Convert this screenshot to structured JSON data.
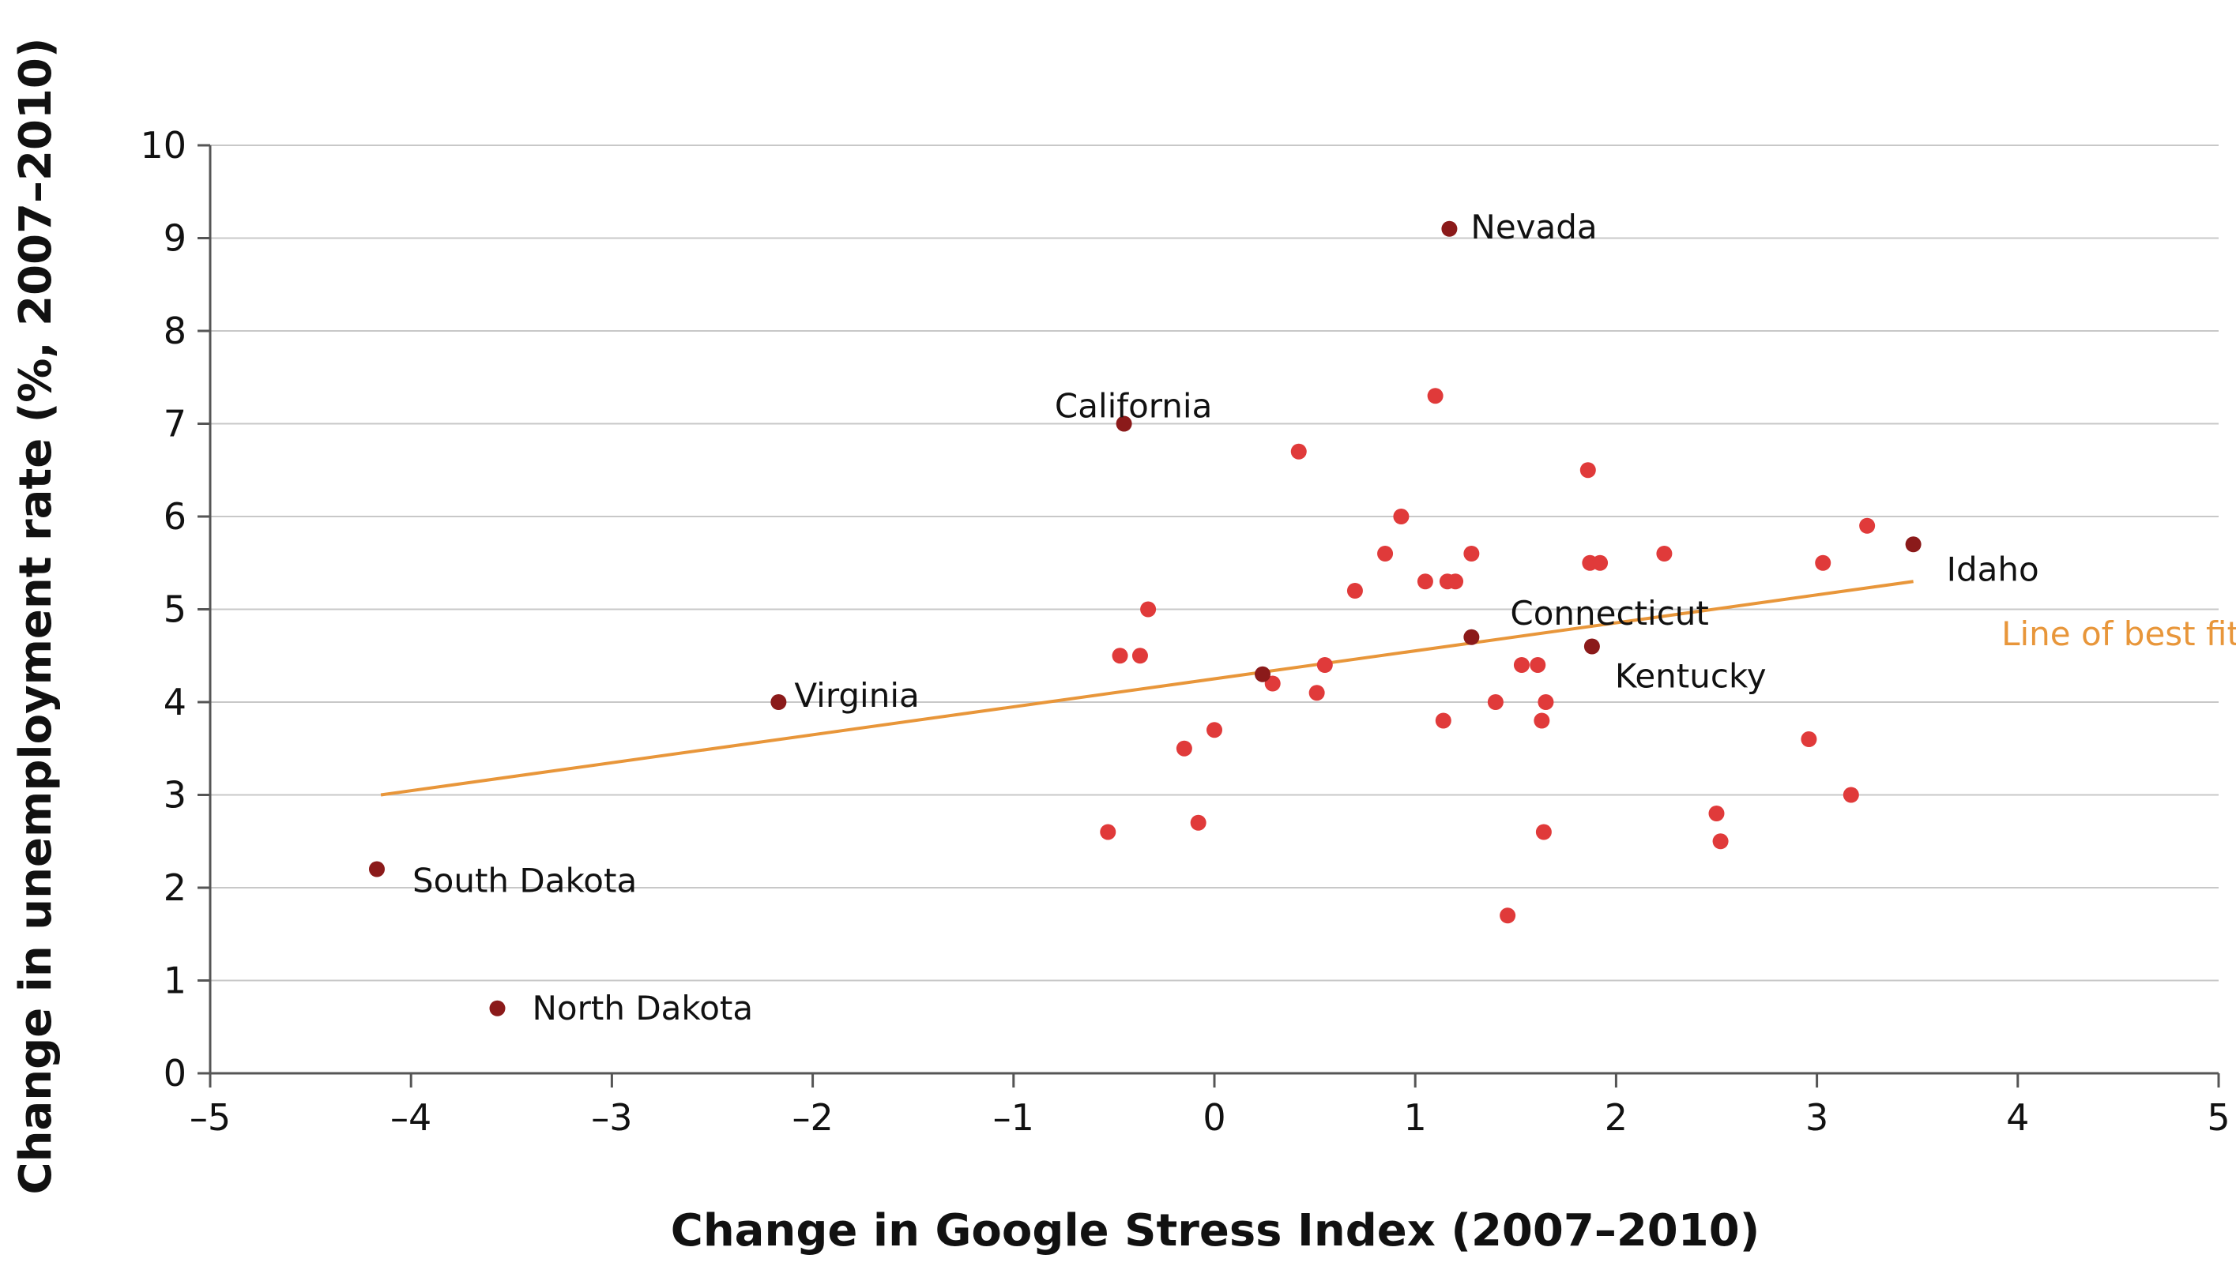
{
  "chart_data": {
    "type": "scatter",
    "xlabel": "Change in Google Stress Index (2007–2010)",
    "ylabel": "Change in unemployment rate (%, 2007–2010)",
    "xlim": [
      -5,
      5
    ],
    "ylim": [
      0,
      10
    ],
    "x_ticks": [
      -5,
      -4,
      -3,
      -2,
      -1,
      0,
      1,
      2,
      3,
      4,
      5
    ],
    "x_tick_labels": [
      "–5",
      "–4",
      "–3",
      "–2",
      "–1",
      "0",
      "1",
      "2",
      "3",
      "4",
      "5"
    ],
    "y_ticks": [
      0,
      1,
      2,
      3,
      4,
      5,
      6,
      7,
      8,
      9,
      10
    ],
    "y_tick_labels": [
      "0",
      "1",
      "2",
      "3",
      "4",
      "5",
      "6",
      "7",
      "8",
      "9",
      "10"
    ],
    "grid": "horizontal",
    "colors": {
      "point": "#e03a3a",
      "highlight": "#8b1a1a",
      "fit_line": "#e8963a",
      "grid": "#c8c8c8",
      "axis": "#555555"
    },
    "labeled_points": [
      {
        "label": "Nevada",
        "x": 1.17,
        "y": 9.1
      },
      {
        "label": "California",
        "x": -0.45,
        "y": 7.0
      },
      {
        "label": "Idaho",
        "x": 3.48,
        "y": 5.7
      },
      {
        "label": "Connecticut",
        "x": 1.28,
        "y": 4.7
      },
      {
        "label": "Kentucky",
        "x": 1.88,
        "y": 4.6
      },
      {
        "label": "Virginia",
        "x": -2.17,
        "y": 4.0
      },
      {
        "label": "South Dakota",
        "x": -4.17,
        "y": 2.2
      },
      {
        "label": "North Dakota",
        "x": -3.57,
        "y": 0.7
      }
    ],
    "unlabeled_highlight_points": [
      {
        "x": 0.24,
        "y": 4.3
      }
    ],
    "points": [
      {
        "x": 1.1,
        "y": 7.3
      },
      {
        "x": 0.42,
        "y": 6.7
      },
      {
        "x": 1.86,
        "y": 6.5
      },
      {
        "x": 0.93,
        "y": 6.0
      },
      {
        "x": 3.25,
        "y": 5.9
      },
      {
        "x": 0.85,
        "y": 5.6
      },
      {
        "x": 1.28,
        "y": 5.6
      },
      {
        "x": 2.24,
        "y": 5.6
      },
      {
        "x": 1.87,
        "y": 5.5
      },
      {
        "x": 1.92,
        "y": 5.5
      },
      {
        "x": 3.03,
        "y": 5.5
      },
      {
        "x": 1.05,
        "y": 5.3
      },
      {
        "x": 1.16,
        "y": 5.3
      },
      {
        "x": 1.2,
        "y": 5.3
      },
      {
        "x": 0.7,
        "y": 5.2
      },
      {
        "x": -0.33,
        "y": 5.0
      },
      {
        "x": -0.47,
        "y": 4.5
      },
      {
        "x": -0.37,
        "y": 4.5
      },
      {
        "x": 0.55,
        "y": 4.4
      },
      {
        "x": 1.53,
        "y": 4.4
      },
      {
        "x": 1.61,
        "y": 4.4
      },
      {
        "x": 0.29,
        "y": 4.2
      },
      {
        "x": 0.51,
        "y": 4.1
      },
      {
        "x": 1.4,
        "y": 4.0
      },
      {
        "x": 1.65,
        "y": 4.0
      },
      {
        "x": 1.14,
        "y": 3.8
      },
      {
        "x": 1.63,
        "y": 3.8
      },
      {
        "x": 0.0,
        "y": 3.7
      },
      {
        "x": 2.96,
        "y": 3.6
      },
      {
        "x": -0.15,
        "y": 3.5
      },
      {
        "x": 3.17,
        "y": 3.0
      },
      {
        "x": 2.5,
        "y": 2.8
      },
      {
        "x": -0.08,
        "y": 2.7
      },
      {
        "x": -0.53,
        "y": 2.6
      },
      {
        "x": 1.64,
        "y": 2.6
      },
      {
        "x": 2.52,
        "y": 2.5
      },
      {
        "x": 1.46,
        "y": 1.7
      }
    ],
    "fit_line": {
      "label": "Line of best fit",
      "x": [
        -4.15,
        3.48
      ],
      "y": [
        3.0,
        5.3
      ]
    }
  }
}
